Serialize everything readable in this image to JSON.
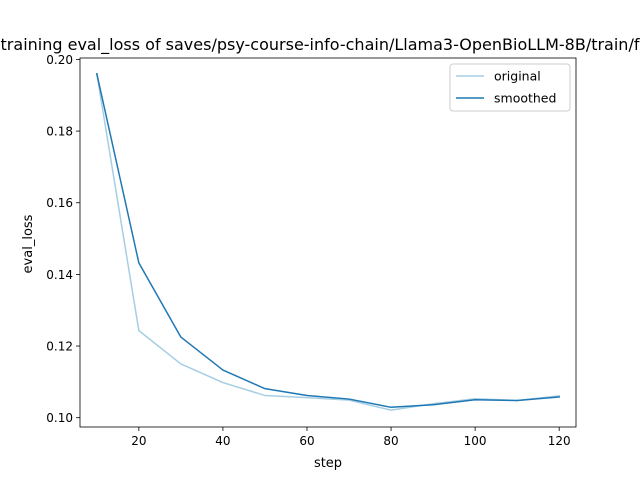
{
  "chart_data": {
    "type": "line",
    "title": "training eval_loss of saves/psy-course-info-chain/Llama3-OpenBioLLM-8B/train/f",
    "xlabel": "step",
    "ylabel": "eval_loss",
    "xlim": [
      6,
      124
    ],
    "ylim": [
      0.0974,
      0.2004
    ],
    "xticks": [
      20,
      40,
      60,
      80,
      100,
      120
    ],
    "yticks": [
      0.1,
      0.12,
      0.14,
      0.16,
      0.18,
      0.2
    ],
    "ytick_labels": [
      "0.10",
      "0.12",
      "0.14",
      "0.16",
      "0.18",
      "0.20"
    ],
    "grid": false,
    "legend_position": "top-right",
    "x": [
      10,
      20,
      30,
      40,
      50,
      60,
      70,
      80,
      90,
      100,
      110,
      120
    ],
    "series": [
      {
        "name": "original",
        "color": "#a6cee3",
        "values": [
          0.196,
          0.1243,
          0.115,
          0.1098,
          0.1062,
          0.1056,
          0.1049,
          0.1021,
          0.1039,
          0.1053,
          0.1048,
          0.1061
        ]
      },
      {
        "name": "smoothed",
        "color": "#1f78b4",
        "values": [
          0.196,
          0.1432,
          0.1225,
          0.1133,
          0.1081,
          0.1062,
          0.1052,
          0.1029,
          0.1036,
          0.105,
          0.1048,
          0.1058
        ]
      }
    ]
  }
}
